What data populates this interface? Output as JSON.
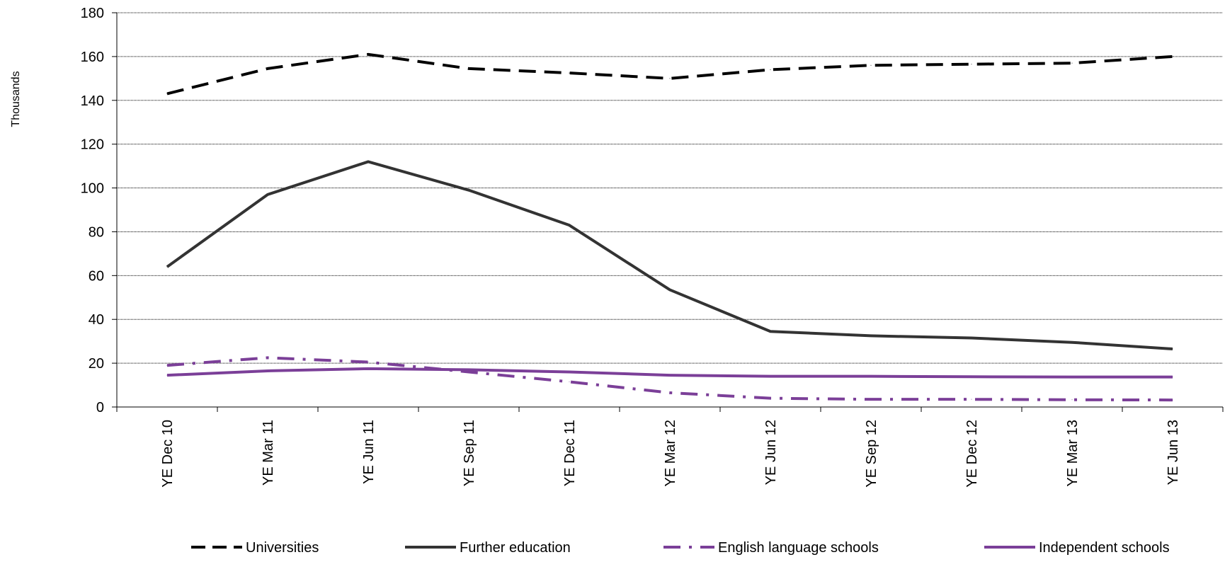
{
  "chart_data": {
    "type": "line",
    "title": "",
    "xlabel": "",
    "ylabel": "Thousands",
    "ylim": [
      0,
      180
    ],
    "yticks": [
      0,
      20,
      40,
      60,
      80,
      100,
      120,
      140,
      160,
      180
    ],
    "grid": true,
    "legend_position": "bottom",
    "categories": [
      "YE Dec 10",
      "YE Mar 11",
      "YE Jun 11",
      "YE Sep 11",
      "YE Dec 11",
      "YE Mar 12",
      "YE Jun 12",
      "YE Sep 12",
      "YE Dec 12",
      "YE Mar 13",
      "YE Jun 13"
    ],
    "series": [
      {
        "name": "Universities",
        "color": "#000000",
        "style": "dashed",
        "values": [
          143,
          154.5,
          161,
          154.5,
          152.5,
          150,
          154,
          156,
          156.5,
          157,
          160
        ]
      },
      {
        "name": "Further education",
        "color": "#333333",
        "style": "solid",
        "values": [
          64,
          97,
          112,
          99,
          83,
          53.5,
          34.5,
          32.5,
          31.5,
          29.5,
          26.5
        ]
      },
      {
        "name": "English language schools",
        "color": "#7B3F98",
        "style": "dash-dot",
        "values": [
          19,
          22.5,
          20.5,
          16,
          11.5,
          6.5,
          4,
          3.5,
          3.5,
          3.3,
          3.2
        ]
      },
      {
        "name": "Independent schools",
        "color": "#7B3F98",
        "style": "solid",
        "values": [
          14.5,
          16.5,
          17.5,
          17,
          16,
          14.5,
          14,
          14,
          13.8,
          13.7,
          13.7
        ]
      }
    ]
  }
}
